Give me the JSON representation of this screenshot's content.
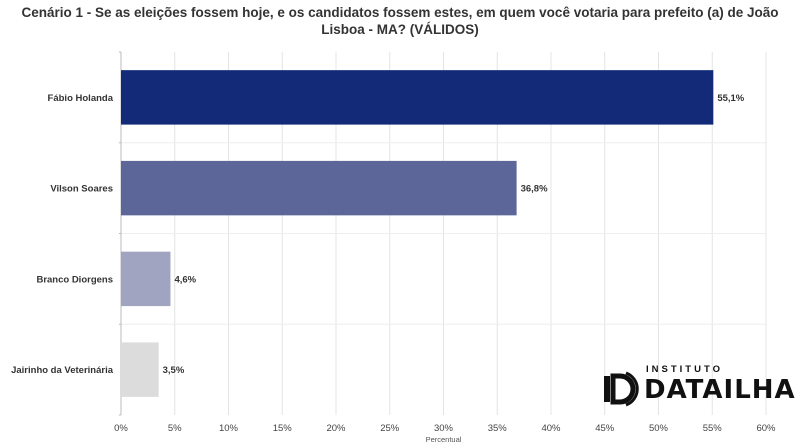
{
  "chart_data": {
    "type": "bar",
    "orientation": "horizontal",
    "title": "Cenário 1 - Se as eleições fossem hoje, e os candidatos fossem estes, em quem você votaria para prefeito (a) de João Lisboa - MA? (VÁLIDOS)",
    "categories": [
      "Fábio Holanda",
      "Vilson Soares",
      "Branco Diorgens",
      "Jairinho da Veterinária"
    ],
    "values": [
      55.1,
      36.8,
      4.6,
      3.5
    ],
    "data_labels": [
      "55,1%",
      "36,8%",
      "4,6%",
      "3,5%"
    ],
    "bar_colors": [
      "#122a77",
      "#5c6699",
      "#a0a4c0",
      "#dcdcdc"
    ],
    "xlabel": "Percentual",
    "ylabel": "",
    "xlim": [
      0,
      60
    ],
    "x_ticks": [
      0,
      5,
      10,
      15,
      20,
      25,
      30,
      35,
      40,
      45,
      50,
      55,
      60
    ],
    "x_tick_labels": [
      "0%",
      "5%",
      "10%",
      "15%",
      "20%",
      "25%",
      "30%",
      "35%",
      "40%",
      "45%",
      "50%",
      "55%",
      "60%"
    ],
    "grid": true,
    "legend": "none"
  },
  "logo": {
    "small_text": "INSTITUTO",
    "big_text": "DATAILHA"
  }
}
